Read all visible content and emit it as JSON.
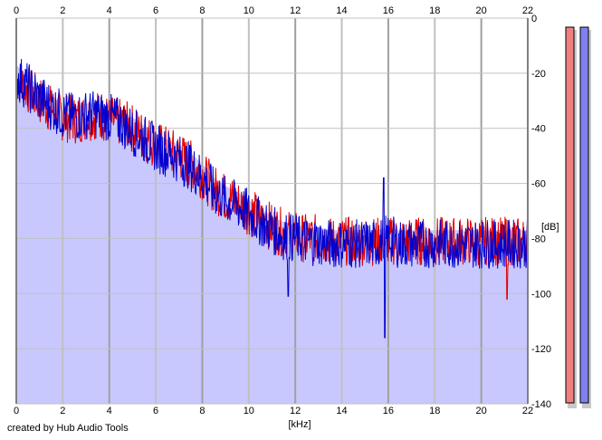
{
  "chart_data": {
    "type": "area",
    "title": "",
    "xlabel": "[kHz]",
    "ylabel": "[dB]",
    "xlim": [
      0,
      22
    ],
    "ylim": [
      -140,
      0
    ],
    "x_ticks": [
      0,
      2,
      4,
      6,
      8,
      10,
      12,
      14,
      16,
      18,
      20,
      22
    ],
    "y_ticks": [
      0,
      -20,
      -40,
      -60,
      -80,
      -100,
      -120,
      -140
    ],
    "grid": true,
    "fill_color": "#c8c8ff",
    "grid_color": "#c0c0c0",
    "series": [
      {
        "color": "#e00000",
        "x": [
          0,
          0.5,
          1,
          1.5,
          2,
          2.5,
          3,
          3.5,
          4,
          4.5,
          5,
          5.5,
          6,
          6.5,
          7,
          7.5,
          8,
          8.5,
          9,
          9.5,
          10,
          10.5,
          11,
          11.5,
          12,
          12.5,
          13,
          13.5,
          14,
          14.5,
          15,
          15.5,
          16,
          16.5,
          17,
          17.5,
          18,
          18.5,
          19,
          19.5,
          20,
          20.5,
          21,
          21.5,
          22
        ],
        "values": [
          -22,
          -26,
          -30,
          -33,
          -36,
          -37,
          -36,
          -35,
          -37,
          -38,
          -40,
          -43,
          -46,
          -48,
          -50,
          -53,
          -57,
          -62,
          -65,
          -67,
          -70,
          -73,
          -76,
          -78,
          -79,
          -80,
          -80,
          -81,
          -81,
          -81,
          -81,
          -81,
          -81,
          -81,
          -81,
          -81,
          -81,
          -81,
          -81,
          -81,
          -81,
          -81,
          -81,
          -81,
          -81
        ]
      },
      {
        "color": "#0000d0",
        "x": [
          0,
          0.5,
          1,
          1.5,
          2,
          2.5,
          3,
          3.5,
          4,
          4.5,
          5,
          5.5,
          6,
          6.5,
          7,
          7.5,
          8,
          8.5,
          9,
          9.5,
          10,
          10.5,
          11,
          11.5,
          12,
          12.5,
          13,
          13.5,
          14,
          14.5,
          15,
          15.5,
          16,
          16.5,
          17,
          17.5,
          18,
          18.5,
          19,
          19.5,
          20,
          20.5,
          21,
          21.5,
          22
        ],
        "values": [
          -21,
          -25,
          -29,
          -32,
          -35,
          -36,
          -35,
          -35,
          -36,
          -38,
          -41,
          -44,
          -47,
          -49,
          -51,
          -54,
          -58,
          -63,
          -66,
          -68,
          -71,
          -74,
          -77,
          -79,
          -80,
          -81,
          -81,
          -82,
          -82,
          -82,
          -82,
          -82,
          -80,
          -82,
          -82,
          -82,
          -82,
          -82,
          -82,
          -82,
          -82,
          -82,
          -82,
          -82,
          -82
        ]
      }
    ],
    "annotations": [
      {
        "x": 15.8,
        "value": -58,
        "series": 1
      },
      {
        "x": 15.85,
        "value": -116,
        "series": 1
      },
      {
        "x": 11.7,
        "value": -101,
        "series": 1
      },
      {
        "x": 21.1,
        "value": -102,
        "series": 0
      }
    ]
  },
  "meters": [
    {
      "color": "#f08080",
      "shadow": "#c8c8c8"
    },
    {
      "color": "#8080f0",
      "shadow": "#c8c8c8"
    }
  ],
  "footer": {
    "credit": "created by Hub Audio Tools"
  }
}
